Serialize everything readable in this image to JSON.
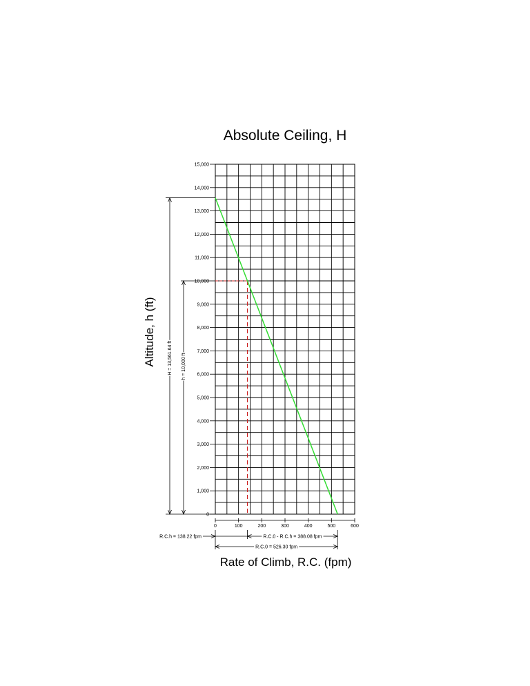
{
  "chart_data": {
    "type": "line",
    "title": "Absolute Ceiling, H",
    "xlabel": "Rate of Climb, R.C. (fpm)",
    "ylabel": "Altitude, h (ft)",
    "xlim": [
      0,
      600
    ],
    "ylim": [
      0,
      15000
    ],
    "x_ticks": [
      "0",
      "100",
      "200",
      "300",
      "400",
      "500",
      "600"
    ],
    "y_ticks": [
      "0",
      "1,000",
      "2,000",
      "3,000",
      "4,000",
      "5,000",
      "6,000",
      "7,000",
      "8,000",
      "9,000",
      "10,000",
      "11,000",
      "12,000",
      "13,000",
      "14,000",
      "15,000"
    ],
    "grid": true,
    "series": [
      {
        "color": "#33dd33",
        "x": [
          526.3,
          0
        ],
        "y": [
          0,
          13561.64
        ]
      }
    ],
    "reference": {
      "color": "#cc2222",
      "x": 138.22,
      "y": 10000
    },
    "annotations": {
      "H": "H = 13,561.64 ft",
      "h": "h = 10,000 ft",
      "rc_h": "R.C.h = 138.22 fpm",
      "rc_diff": "R.C.0 - R.C.h = 388.08 fpm",
      "rc_0": "R.C.0 = 526.30 fpm"
    }
  }
}
